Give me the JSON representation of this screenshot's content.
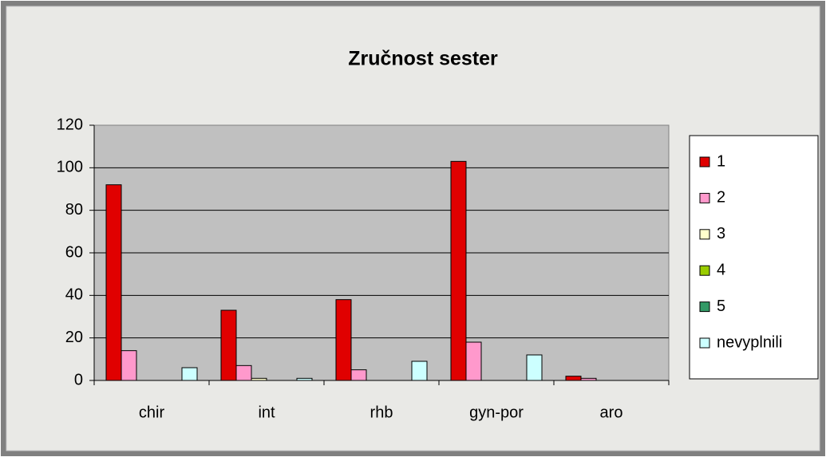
{
  "chart_data": {
    "type": "bar",
    "title": "Zručnost sester",
    "categories": [
      "chir",
      "int",
      "rhb",
      "gyn-por",
      "aro"
    ],
    "series": [
      {
        "name": "1",
        "color": "#e00000",
        "values": [
          92,
          33,
          38,
          103,
          2
        ]
      },
      {
        "name": "2",
        "color": "#ff99cc",
        "values": [
          14,
          7,
          5,
          18,
          1
        ]
      },
      {
        "name": "3",
        "color": "#ffffcc",
        "values": [
          0,
          1,
          0,
          0,
          0
        ]
      },
      {
        "name": "4",
        "color": "#99cc00",
        "values": [
          0,
          0,
          0,
          0,
          0
        ]
      },
      {
        "name": "5",
        "color": "#339966",
        "values": [
          0,
          0,
          0,
          0,
          0
        ]
      },
      {
        "name": "nevyplnili",
        "color": "#ccffff",
        "values": [
          6,
          1,
          9,
          12,
          0
        ]
      }
    ],
    "ylim": [
      0,
      120
    ],
    "yticks": [
      0,
      20,
      40,
      60,
      80,
      100,
      120
    ],
    "grid": true,
    "legend": "right"
  }
}
